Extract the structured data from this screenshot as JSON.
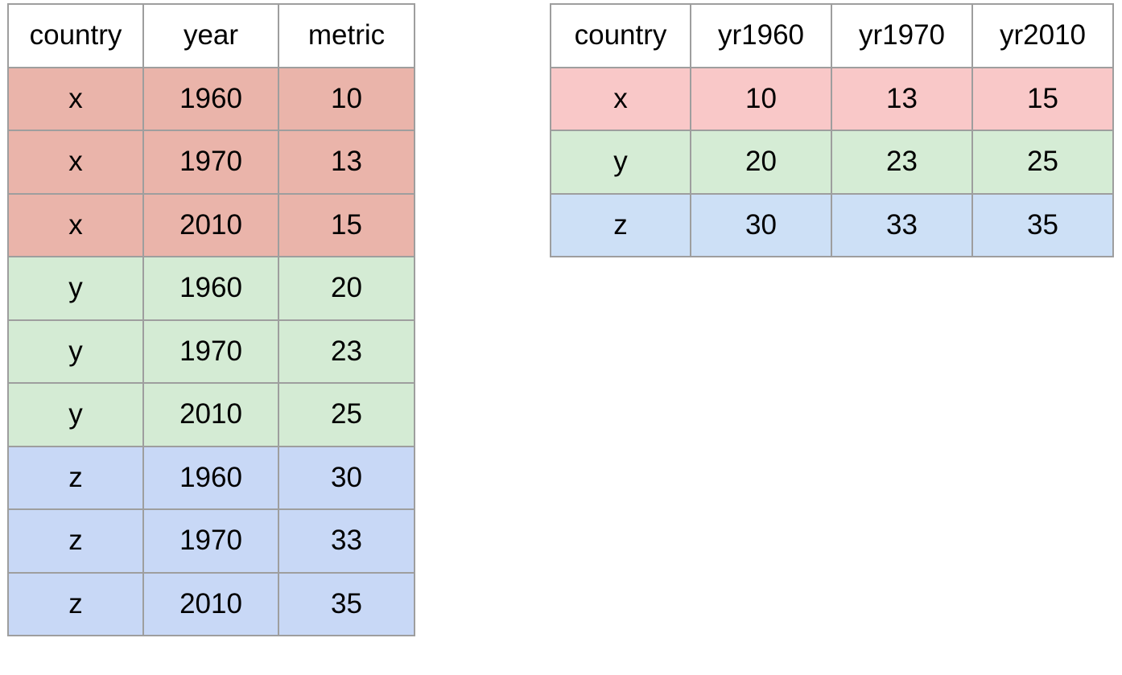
{
  "long_table": {
    "headers": [
      "country",
      "year",
      "metric"
    ],
    "rows": [
      {
        "country": "x",
        "year": "1960",
        "metric": "10"
      },
      {
        "country": "x",
        "year": "1970",
        "metric": "13"
      },
      {
        "country": "x",
        "year": "2010",
        "metric": "15"
      },
      {
        "country": "y",
        "year": "1960",
        "metric": "20"
      },
      {
        "country": "y",
        "year": "1970",
        "metric": "23"
      },
      {
        "country": "y",
        "year": "2010",
        "metric": "25"
      },
      {
        "country": "z",
        "year": "1960",
        "metric": "30"
      },
      {
        "country": "z",
        "year": "1970",
        "metric": "33"
      },
      {
        "country": "z",
        "year": "2010",
        "metric": "35"
      }
    ],
    "row_colors": {
      "x": "#eab4aa",
      "y": "#d4ebd4",
      "z": "#c8d8f6"
    }
  },
  "wide_table": {
    "headers": [
      "country",
      "yr1960",
      "yr1970",
      "yr2010"
    ],
    "rows": [
      {
        "country": "x",
        "yr1960": "10",
        "yr1970": "13",
        "yr2010": "15"
      },
      {
        "country": "y",
        "yr1960": "20",
        "yr1970": "23",
        "yr2010": "25"
      },
      {
        "country": "z",
        "yr1960": "30",
        "yr1970": "33",
        "yr2010": "35"
      }
    ],
    "row_colors": {
      "x": "#f9c8c8",
      "y": "#d5ecd5",
      "z": "#cde0f6"
    }
  }
}
